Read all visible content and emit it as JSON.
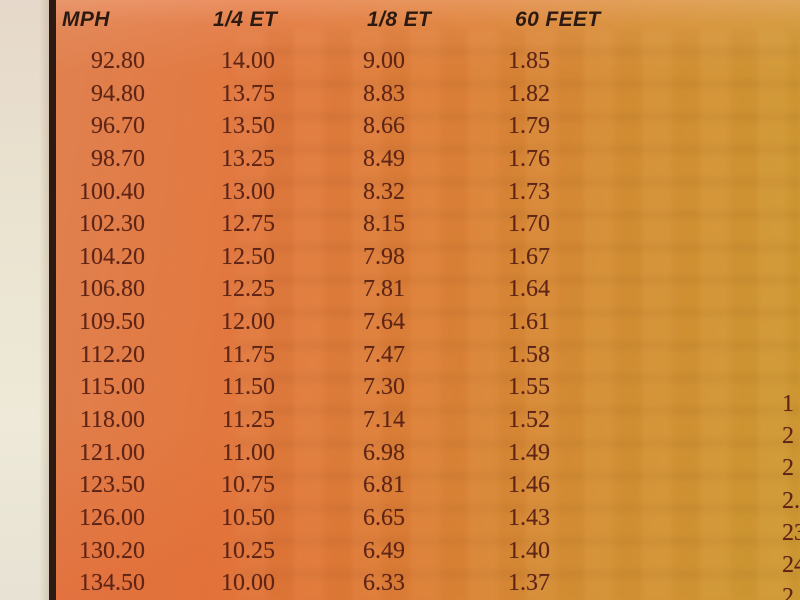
{
  "table": {
    "headers": [
      "MPH",
      "1/4 ET",
      "1/8 ET",
      "60 FEET"
    ],
    "rows": [
      [
        "92.80",
        "14.00",
        "9.00",
        "1.85"
      ],
      [
        "94.80",
        "13.75",
        "8.83",
        "1.82"
      ],
      [
        "96.70",
        "13.50",
        "8.66",
        "1.79"
      ],
      [
        "98.70",
        "13.25",
        "8.49",
        "1.76"
      ],
      [
        "100.40",
        "13.00",
        "8.32",
        "1.73"
      ],
      [
        "102.30",
        "12.75",
        "8.15",
        "1.70"
      ],
      [
        "104.20",
        "12.50",
        "7.98",
        "1.67"
      ],
      [
        "106.80",
        "12.25",
        "7.81",
        "1.64"
      ],
      [
        "109.50",
        "12.00",
        "7.64",
        "1.61"
      ],
      [
        "112.20",
        "11.75",
        "7.47",
        "1.58"
      ],
      [
        "115.00",
        "11.50",
        "7.30",
        "1.55"
      ],
      [
        "118.00",
        "11.25",
        "7.14",
        "1.52"
      ],
      [
        "121.00",
        "11.00",
        "6.98",
        "1.49"
      ],
      [
        "123.50",
        "10.75",
        "6.81",
        "1.46"
      ],
      [
        "126.00",
        "10.50",
        "6.65",
        "1.43"
      ],
      [
        "130.20",
        "10.25",
        "6.49",
        "1.40"
      ],
      [
        "134.50",
        "10.00",
        "6.33",
        "1.37"
      ]
    ]
  },
  "right_edge_fragments": [
    "1",
    "2",
    "2",
    "2.",
    "23",
    "24",
    "2"
  ],
  "colors": {
    "page_margin_cream": "#e9e2d0",
    "border_rule": "#2d1b13",
    "header_text": "#2c1a12",
    "number_text": "#5e2517",
    "panel_orange_left": "#e2783f",
    "panel_orange_right": "#cf9a33"
  }
}
